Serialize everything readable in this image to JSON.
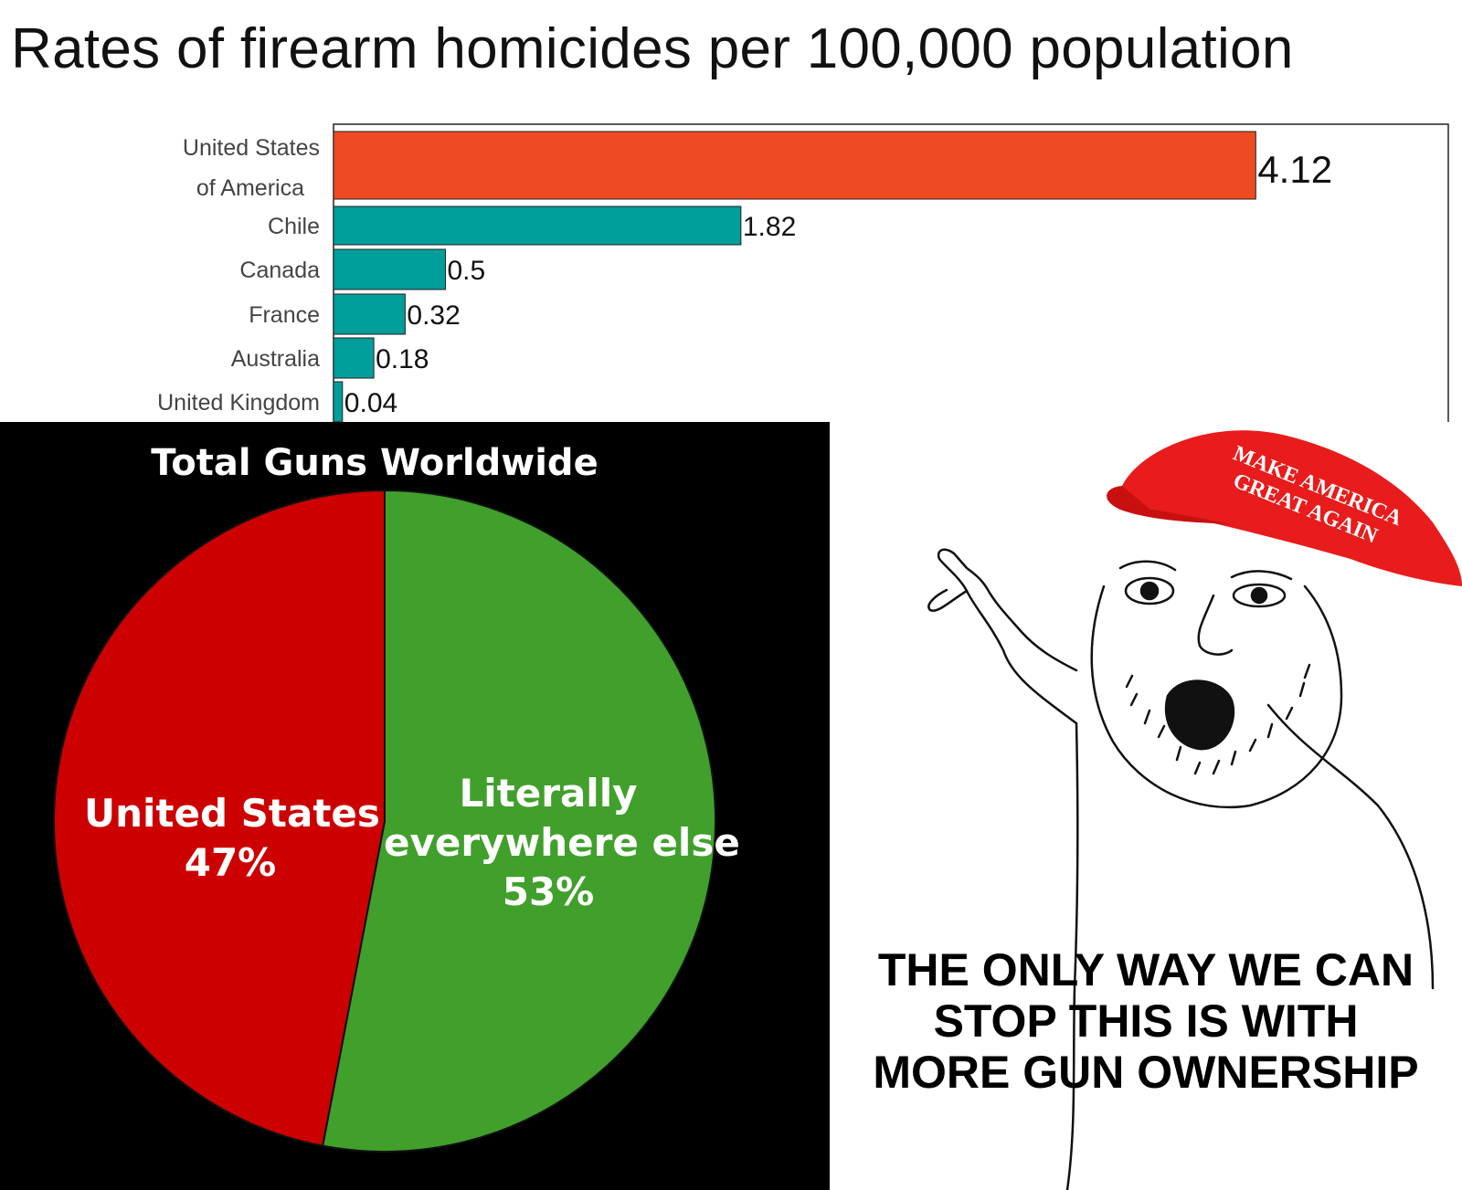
{
  "chart_data": [
    {
      "type": "bar",
      "orientation": "horizontal",
      "title": "Rates of firearm homicides per 100,000 population",
      "categories": [
        [
          "United States",
          "of America"
        ],
        [
          "Chile"
        ],
        [
          "Canada"
        ],
        [
          "France"
        ],
        [
          "Australia"
        ],
        [
          "United Kingdom"
        ]
      ],
      "values": [
        4.12,
        1.82,
        0.5,
        0.32,
        0.18,
        0.04
      ],
      "value_labels": [
        "4.12",
        "1.82",
        "0.5",
        "0.32",
        "0.18",
        "0.04"
      ],
      "colors": [
        "#ee4b22",
        "#009e9a",
        "#009e9a",
        "#009e9a",
        "#009e9a",
        "#009e9a"
      ],
      "xlim": [
        0,
        4.98
      ],
      "grid": false
    },
    {
      "type": "pie",
      "title": "Total Guns Worldwide",
      "slices": [
        {
          "label": [
            "United States",
            "47%"
          ],
          "value": 47,
          "color": "#cc0000"
        },
        {
          "label": [
            "Literally",
            "everywhere else",
            "53%"
          ],
          "value": 53,
          "color": "#40a02b"
        }
      ]
    }
  ],
  "meme": {
    "hat_text": [
      "MAKE AMERICA",
      "GREAT AGAIN"
    ],
    "hat_color": "#e81c1c",
    "caption": [
      "THE ONLY WAY WE CAN",
      "STOP THIS IS WITH",
      "MORE GUN OWNERSHIP"
    ]
  }
}
